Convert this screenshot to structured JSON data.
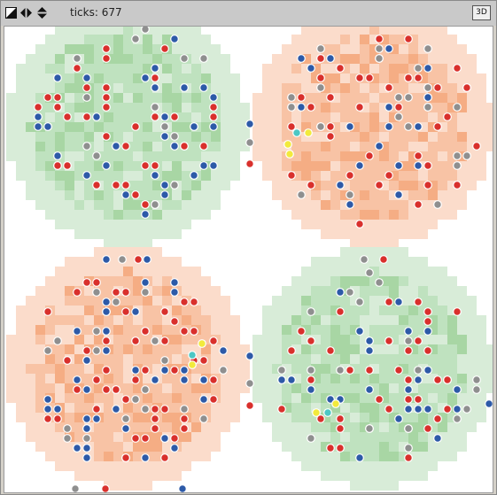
{
  "toolbar": {
    "ticks_text": "ticks: 677",
    "view_mode_label": "3D",
    "icons": [
      "resize-icon",
      "left-right-arrows-icon",
      "up-down-arrows-icon"
    ]
  },
  "world": {
    "colors": {
      "green_patch_light": "#d8ecd8",
      "green_patch_mid": "#bfe2bf",
      "green_patch_dark": "#a8d6a4",
      "orange_patch_light": "#fbdccb",
      "orange_patch_mid": "#f8c3a5",
      "orange_patch_dark": "#f5ad84",
      "agent_red": "#d9302c",
      "agent_blue": "#2d5aa8",
      "agent_gray": "#8f8f8f",
      "agent_yellow": "#f2ea3c",
      "agent_cyan": "#4cc7c4",
      "agent_outline": "#ffffff"
    },
    "regions": [
      {
        "name": "top-left-region",
        "type": "green"
      },
      {
        "name": "top-right-region",
        "type": "orange"
      },
      {
        "name": "bottom-left-region",
        "type": "orange"
      },
      {
        "name": "bottom-right-region",
        "type": "green"
      }
    ]
  }
}
